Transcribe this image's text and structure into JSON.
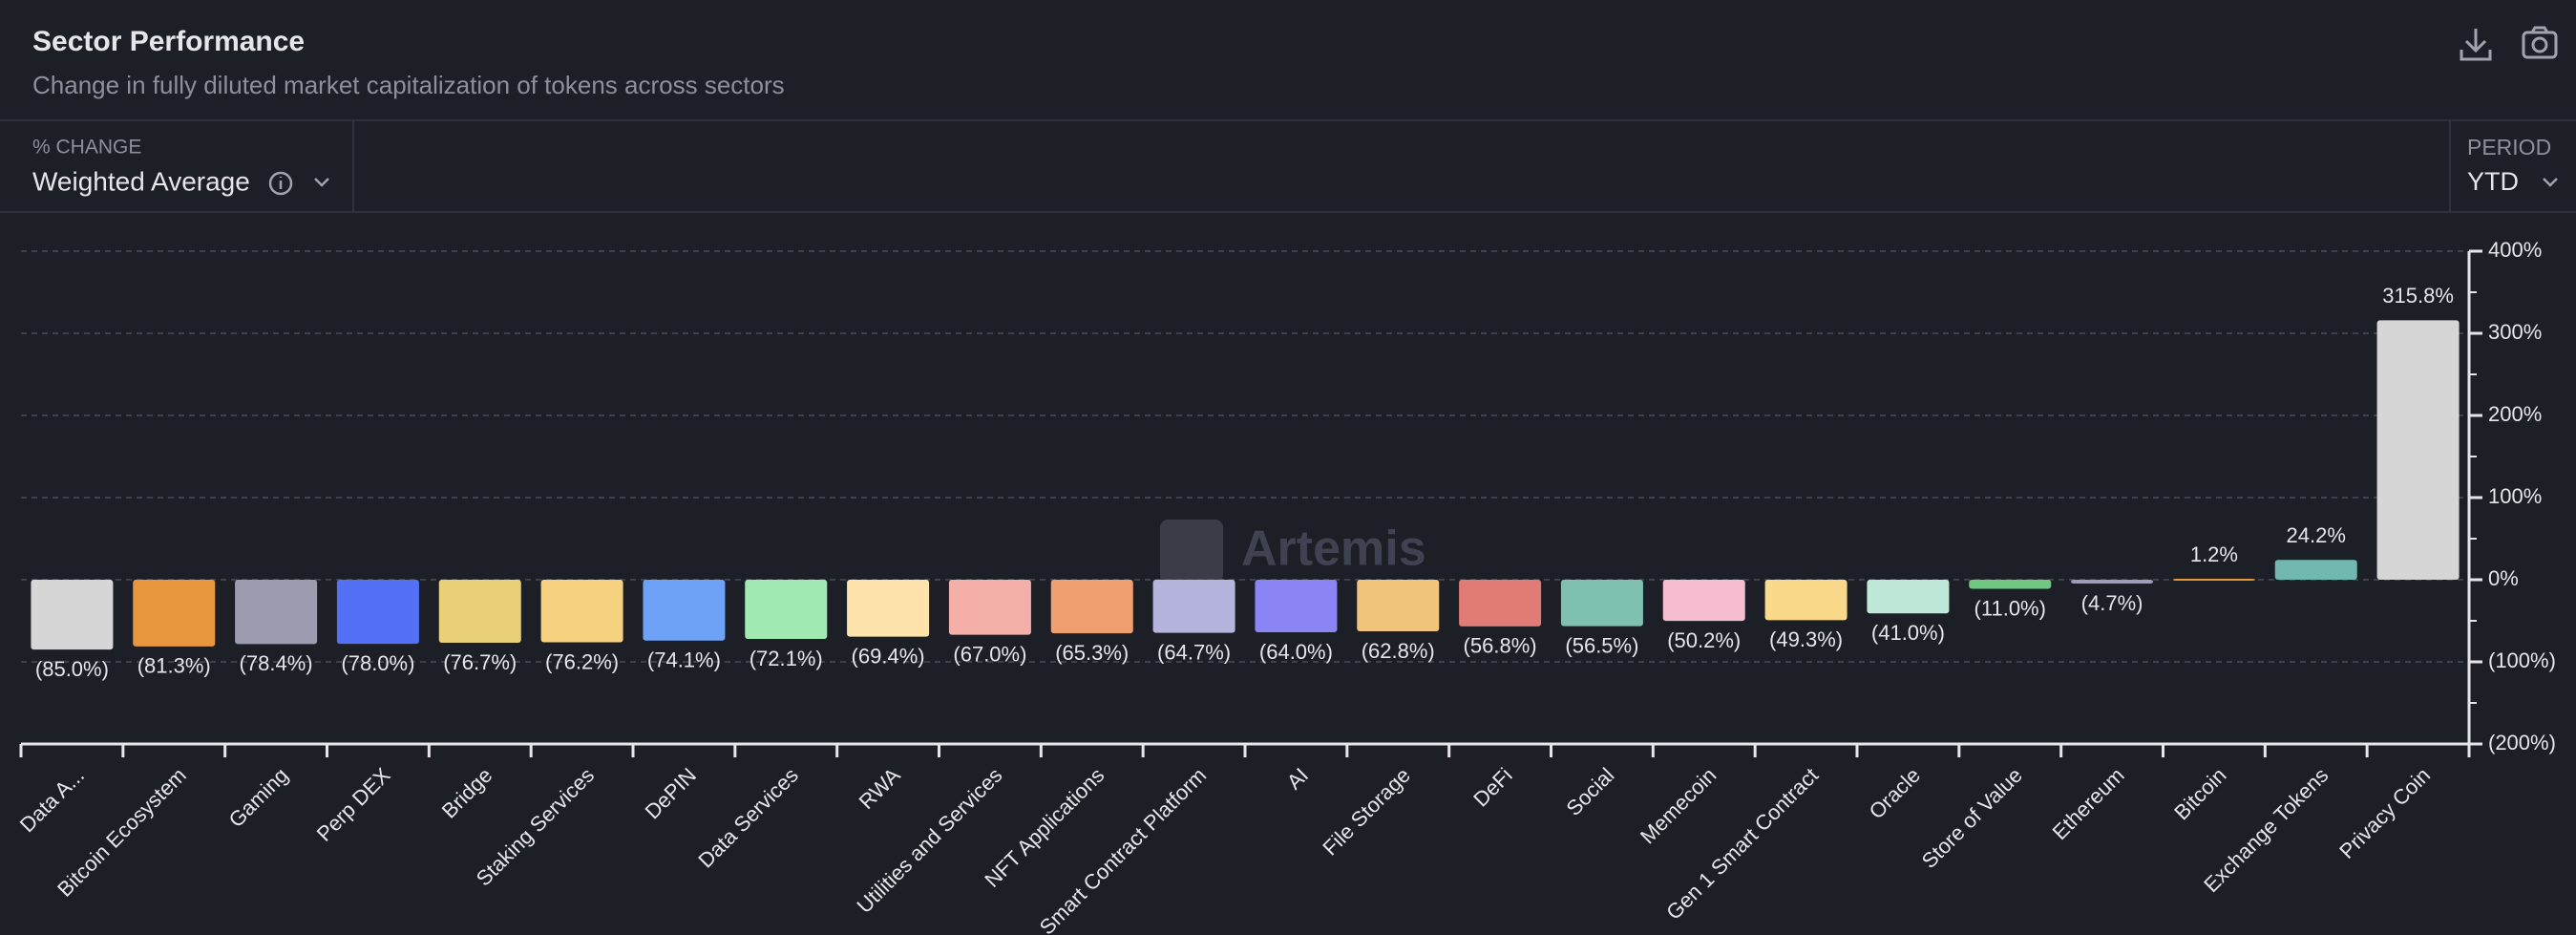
{
  "header": {
    "title": "Sector Performance",
    "subtitle": "Change in fully diluted market capitalization of tokens across sectors"
  },
  "controls": {
    "measure_label": "% CHANGE",
    "measure_value": "Weighted Average",
    "period_label": "PERIOD",
    "period_value": "YTD"
  },
  "chart_data": {
    "type": "bar",
    "watermark": "Artemis",
    "categories": [
      "Data A...",
      "Bitcoin Ecosystem",
      "Gaming",
      "Perp DEX",
      "Bridge",
      "Staking Services",
      "DePIN",
      "Data Services",
      "RWA",
      "Utilities and Services",
      "NFT Applications",
      "Smart Contract Platform",
      "AI",
      "File Storage",
      "DeFi",
      "Social",
      "Memecoin",
      "Gen 1 Smart Contract",
      "Oracle",
      "Store of Value",
      "Ethereum",
      "Bitcoin",
      "Exchange Tokens",
      "Privacy Coin"
    ],
    "values": [
      -85.0,
      -81.3,
      -78.4,
      -78.0,
      -76.7,
      -76.2,
      -74.1,
      -72.1,
      -69.4,
      -67.0,
      -65.3,
      -64.7,
      -64.0,
      -62.8,
      -56.8,
      -56.5,
      -50.2,
      -49.3,
      -41.0,
      -11.0,
      -4.7,
      1.2,
      24.2,
      315.8
    ],
    "value_labels": [
      "(85.0%)",
      "(81.3%)",
      "(78.4%)",
      "(78.0%)",
      "(76.7%)",
      "(76.2%)",
      "(74.1%)",
      "(72.1%)",
      "(69.4%)",
      "(67.0%)",
      "(65.3%)",
      "(64.7%)",
      "(64.0%)",
      "(62.8%)",
      "(56.8%)",
      "(56.5%)",
      "(50.2%)",
      "(49.3%)",
      "(41.0%)",
      "(11.0%)",
      "(4.7%)",
      "1.2%",
      "24.2%",
      "315.8%"
    ],
    "colors": [
      "#d6d6d6",
      "#e8973f",
      "#9c9cb0",
      "#5470f5",
      "#e8cf78",
      "#f6d17f",
      "#6ea2f7",
      "#a2e8b2",
      "#fde3ab",
      "#f4b0a8",
      "#f0a070",
      "#b4b4dc",
      "#8a84f5",
      "#f0c47a",
      "#e07b76",
      "#80c0b0",
      "#f6bcd0",
      "#fad98a",
      "#bfe8d8",
      "#70c880",
      "#9c9cb8",
      "#e8973f",
      "#70b8b0",
      "#d6d6d6"
    ],
    "ylim": [
      -200,
      400
    ],
    "yticks": [
      {
        "value": -200,
        "label": "(200%)"
      },
      {
        "value": -100,
        "label": "(100%)"
      },
      {
        "value": 0,
        "label": "0%"
      },
      {
        "value": 100,
        "label": "100%"
      },
      {
        "value": 200,
        "label": "200%"
      },
      {
        "value": 300,
        "label": "300%"
      },
      {
        "value": 400,
        "label": "400%"
      }
    ],
    "grid": true,
    "y_axis_side": "right"
  }
}
